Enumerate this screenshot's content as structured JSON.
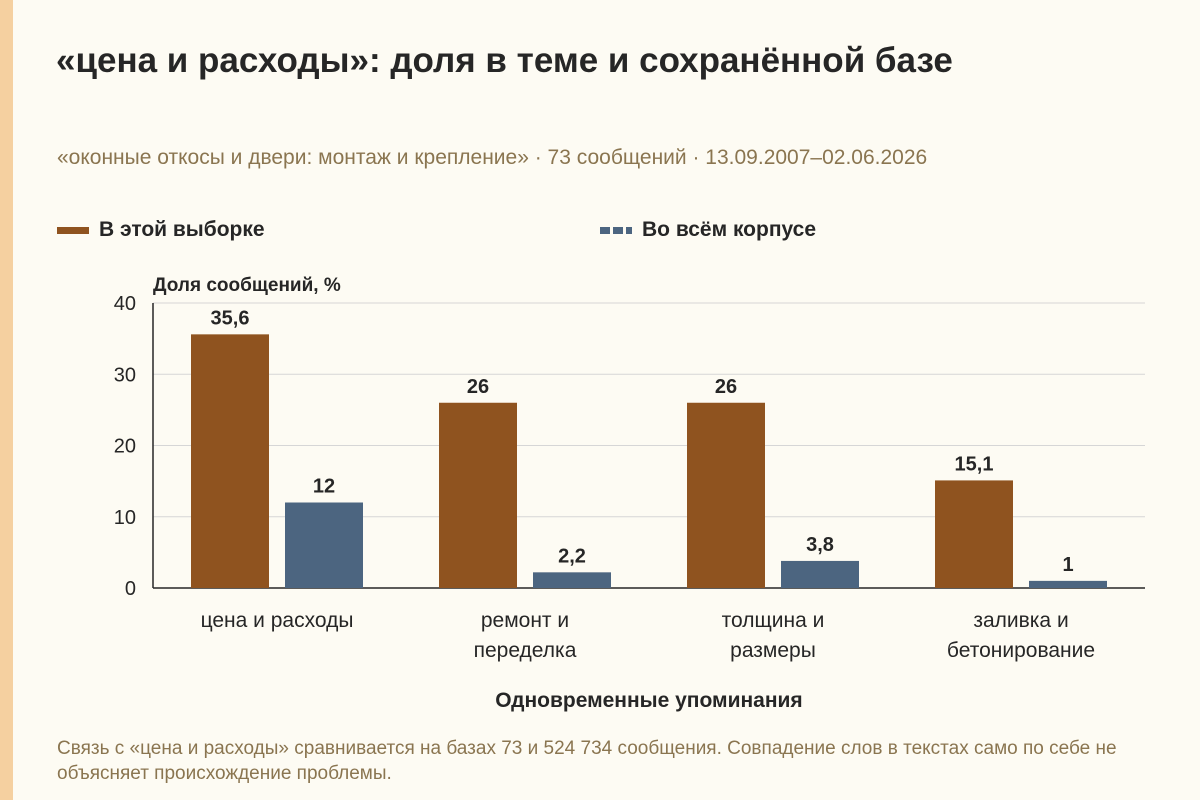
{
  "title": "«цена и расходы»: доля в теме и сохранённой базе",
  "subtitle": "«оконные откосы и двери: монтаж и крепление» · 73 сообщений · 13.09.2007–02.06.2026",
  "note": "Связь с «цена и расходы» сравнивается на базах 73 и 524 734 сообщения. Совпадение слов в текстах само по себе не объясняет происхождение проблемы.",
  "chart_data": {
    "type": "bar",
    "categories": [
      "цена и расходы",
      "ремонт и переделка",
      "толщина и размеры",
      "заливка и бетонирование"
    ],
    "category_lines": [
      [
        "цена и расходы"
      ],
      [
        "ремонт и",
        "переделка"
      ],
      [
        "толщина и",
        "размеры"
      ],
      [
        "заливка и",
        "бетонирование"
      ]
    ],
    "series": [
      {
        "name": "В этой выборке",
        "values": [
          35.6,
          26,
          26,
          15.1
        ],
        "labels": [
          "35,6",
          "26",
          "26",
          "15,1"
        ],
        "color": "#8f531f",
        "legend_style": "solid"
      },
      {
        "name": "Во всём корпусе",
        "values": [
          12,
          2.2,
          3.8,
          1
        ],
        "labels": [
          "12",
          "2,2",
          "3,8",
          "1"
        ],
        "color": "#4c6580",
        "legend_style": "dashed"
      }
    ],
    "ylabel": "Доля сообщений, %",
    "xlabel": "Одновременные упоминания",
    "ylim": [
      0,
      40
    ],
    "yticks": [
      0,
      10,
      20,
      30,
      40
    ],
    "grid": true,
    "legend_position": "top-left"
  }
}
